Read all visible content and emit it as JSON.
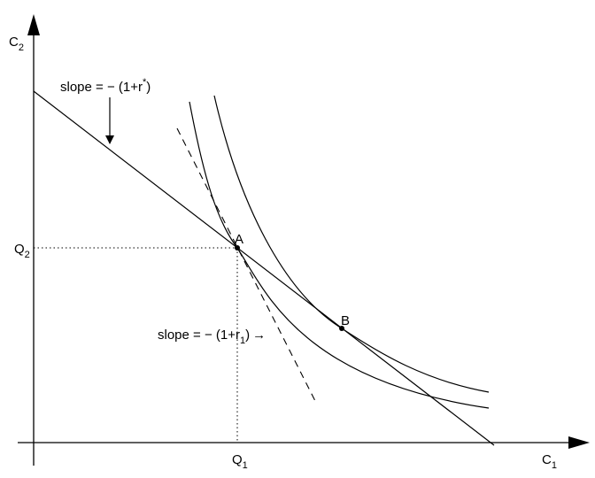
{
  "axes": {
    "y": {
      "label": "C",
      "sub": "2"
    },
    "x": {
      "label": "C",
      "sub": "1"
    }
  },
  "ticks": {
    "q2": {
      "label": "Q",
      "sub": "2"
    },
    "q1": {
      "label": "Q",
      "sub": "1"
    }
  },
  "points": [
    {
      "label": "A"
    },
    {
      "label": "B"
    }
  ],
  "annotations": [
    {
      "text": "slope = − (1+r",
      "sup": "*",
      "close": ")"
    },
    {
      "text": "slope = − (1+r",
      "sub": "1",
      "close": ")",
      "arrow": "→"
    }
  ]
}
